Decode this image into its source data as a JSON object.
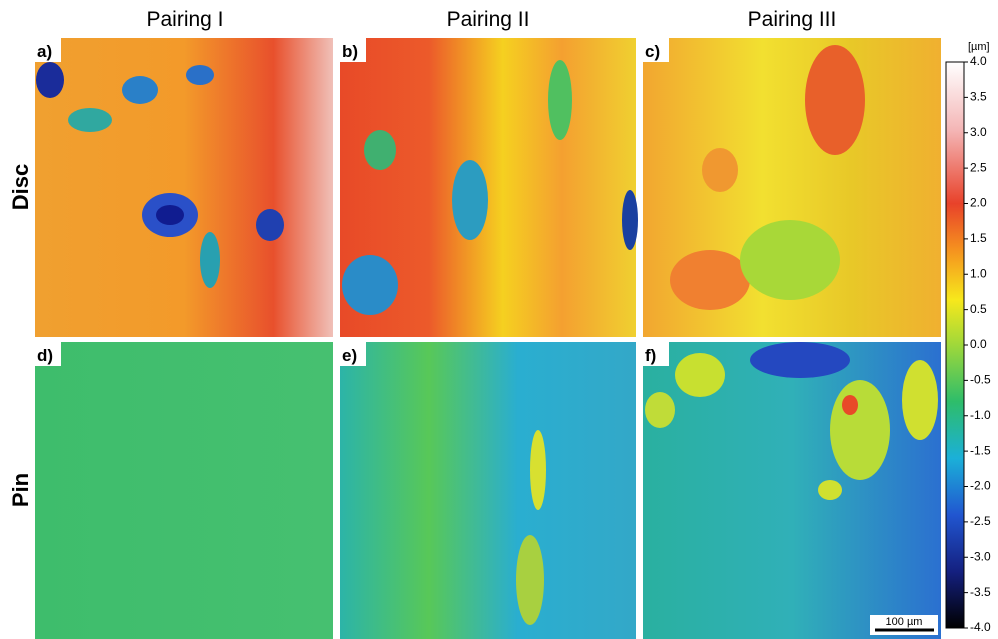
{
  "columns": [
    "Pairing I",
    "Pairing II",
    "Pairing III"
  ],
  "rows": [
    "Disc",
    "Pin"
  ],
  "panels": [
    "a)",
    "b)",
    "c)",
    "d)",
    "e)",
    "f)"
  ],
  "colorbar": {
    "unit": "[µm]",
    "ticks": [
      "4.0",
      "3.5",
      "3.0",
      "2.5",
      "2.0",
      "1.5",
      "1.0",
      "0.5",
      "0.0",
      "-0.5",
      "-1.0",
      "-1.5",
      "-2.0",
      "-2.5",
      "-3.0",
      "-3.5",
      "-4.0"
    ]
  },
  "scale_bar": "100 µm"
}
